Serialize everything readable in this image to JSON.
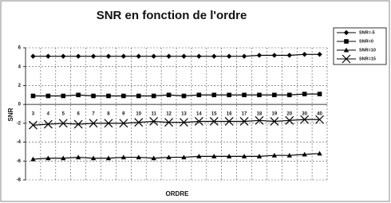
{
  "chart_data": {
    "type": "line",
    "title": "SNR en fonction de l'ordre",
    "x_label": "ORDRE",
    "y_label": "SNR",
    "categories": [
      "3",
      "4",
      "5",
      "6",
      "7",
      "8",
      "9",
      "10",
      "11",
      "12",
      "13",
      "14",
      "15",
      "16",
      "17",
      "18",
      "19",
      "20",
      "30",
      "40"
    ],
    "series": [
      {
        "name": "SNR=-5",
        "color": "#000000",
        "marker": "diamond",
        "values": [
          5.1,
          5.1,
          5.1,
          5.1,
          5.1,
          5.1,
          5.1,
          5.1,
          5.1,
          5.1,
          5.1,
          5.1,
          5.1,
          5.1,
          5.1,
          5.2,
          5.2,
          5.2,
          5.3,
          5.3
        ]
      },
      {
        "name": "SNR=0",
        "color": "#000000",
        "marker": "square",
        "values": [
          0.9,
          0.9,
          0.9,
          1.0,
          0.9,
          0.9,
          0.9,
          0.9,
          0.9,
          1.0,
          0.9,
          1.0,
          1.0,
          1.0,
          1.0,
          1.0,
          1.0,
          1.0,
          1.1,
          1.1
        ]
      },
      {
        "name": "SNR=10",
        "color": "#000000",
        "marker": "triangle",
        "values": [
          -5.8,
          -5.7,
          -5.7,
          -5.6,
          -5.7,
          -5.7,
          -5.6,
          -5.6,
          -5.7,
          -5.6,
          -5.6,
          -5.5,
          -5.5,
          -5.5,
          -5.5,
          -5.5,
          -5.4,
          -5.4,
          -5.3,
          -5.2
        ]
      },
      {
        "name": "SNR=15",
        "color": "#000000",
        "marker": "x",
        "values": [
          -2.2,
          -2.1,
          -2.0,
          -2.1,
          -2.0,
          -2.0,
          -2.0,
          -1.9,
          -1.8,
          -1.9,
          -1.9,
          -1.8,
          -1.8,
          -1.8,
          -1.8,
          -1.7,
          -1.8,
          -1.7,
          -1.6,
          -1.6
        ]
      }
    ],
    "ylim": [
      -8,
      6
    ],
    "yticks": [
      -8,
      -6,
      -4,
      -2,
      0,
      2,
      4,
      6
    ],
    "grid": true
  }
}
